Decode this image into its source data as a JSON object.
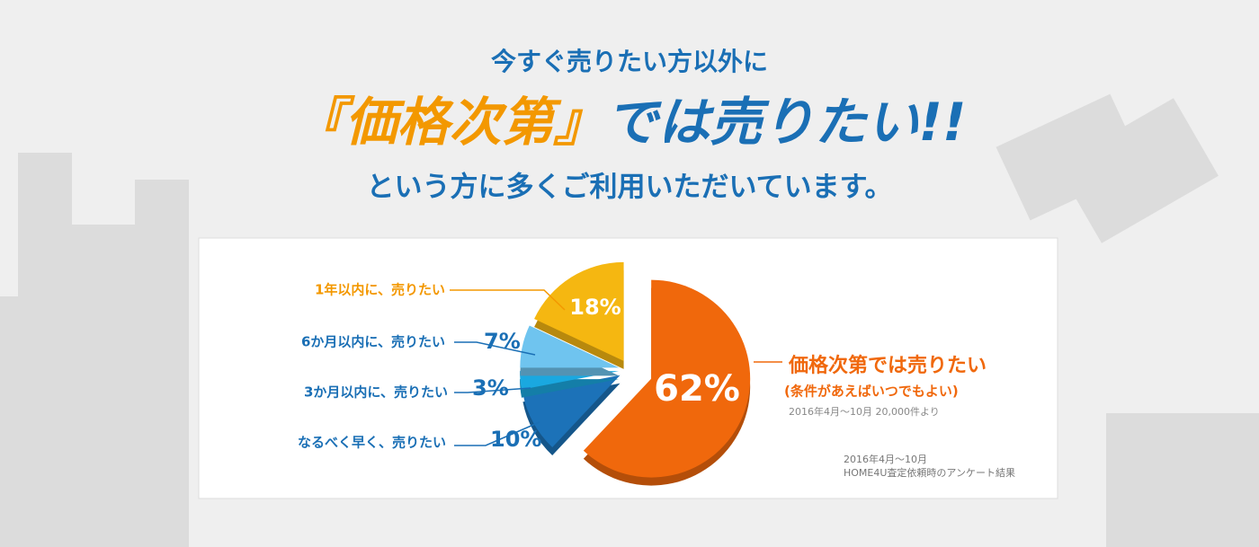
{
  "header": {
    "line1": "今すぐ売りたい方以外に",
    "highlight": "『価格次第』",
    "line2_rest": "では売りたい!!",
    "line3": "という方に多くご利用いただいています。"
  },
  "chart_data": {
    "type": "pie",
    "categories": [
      "価格次第では売りたい",
      "なるべく早く、売りたい",
      "3か月以内に、売りたい",
      "6か月以内に、売りたい",
      "1年以内に、売りたい"
    ],
    "values": [
      62,
      10,
      3,
      7,
      18
    ],
    "value_labels": [
      "62%",
      "10%",
      "3%",
      "7%",
      "18%"
    ],
    "colors": [
      "#f0680c",
      "#1c72b8",
      "#1aa8e0",
      "#6fc4ef",
      "#f5b711"
    ],
    "annotations": [
      "(条件があえばいつでもよい)",
      "2016年4月～10月 20,000件より"
    ],
    "source": [
      "2016年4月～10月",
      "HOME4U査定依頼時のアンケート結果"
    ]
  }
}
